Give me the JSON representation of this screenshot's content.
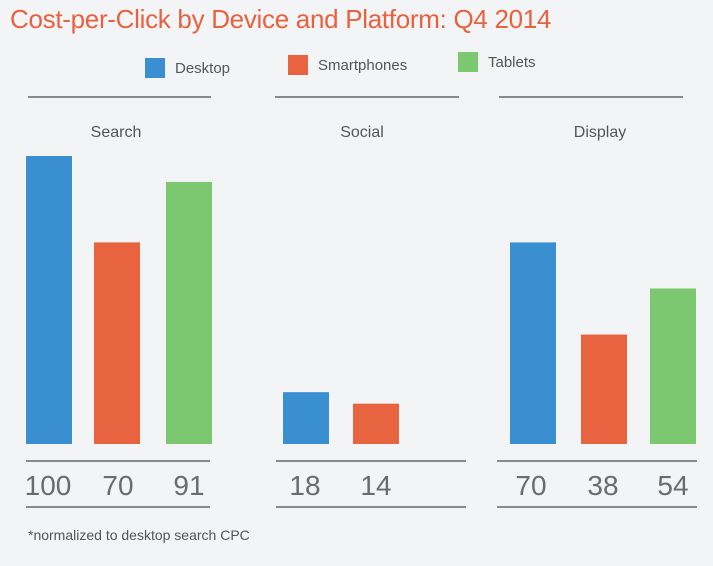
{
  "title": "Cost-per-Click by Device and Platform: Q4 2014",
  "footnote": "*normalized to desktop search CPC",
  "legend": [
    {
      "label": "Desktop",
      "color": "#3a8fd1"
    },
    {
      "label": "Smartphones",
      "color": "#e8633f"
    },
    {
      "label": "Tablets",
      "color": "#7cc870"
    }
  ],
  "chart_data": {
    "type": "bar",
    "title": "Cost-per-Click by Device and Platform: Q4 2014",
    "categories": [
      "Search",
      "Social",
      "Display"
    ],
    "series": [
      {
        "name": "Desktop",
        "values": [
          100,
          18,
          70
        ]
      },
      {
        "name": "Smartphones",
        "values": [
          70,
          14,
          38
        ]
      },
      {
        "name": "Tablets",
        "values": [
          91,
          null,
          54
        ]
      }
    ],
    "value_labels": [
      [
        "100",
        "70",
        "91"
      ],
      [
        "18",
        "14"
      ],
      [
        "70",
        "38",
        "54"
      ]
    ],
    "xlabel": "",
    "ylabel": "",
    "ylim": [
      0,
      100
    ],
    "note": "*normalized to desktop search CPC"
  }
}
